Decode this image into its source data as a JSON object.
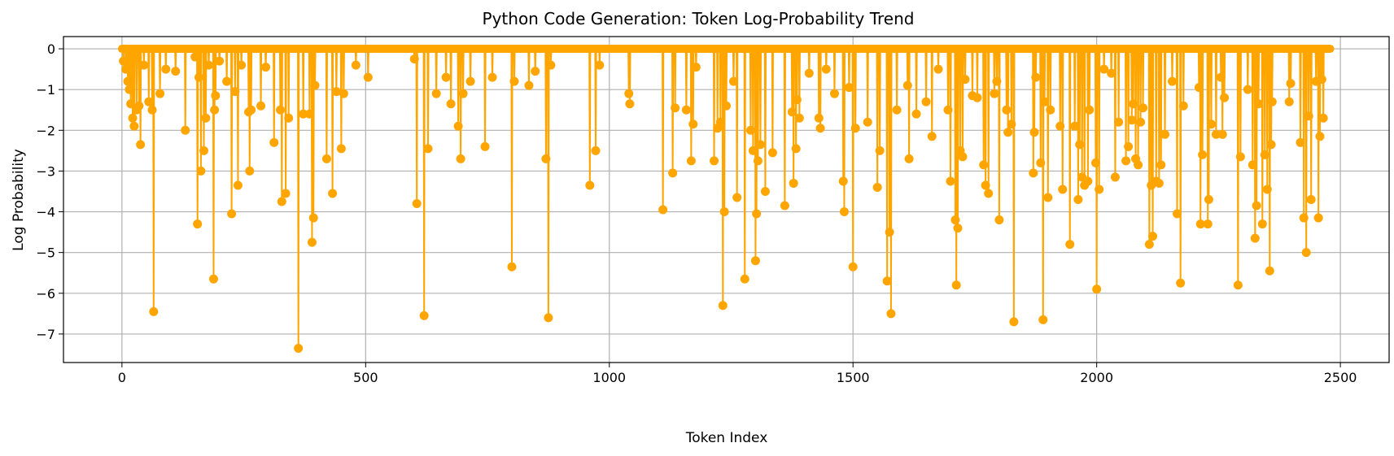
{
  "chart_data": {
    "type": "line",
    "title": "Python Code Generation: Token Log-Probability Trend",
    "xlabel": "Token Index",
    "ylabel": "Log Probability",
    "xlim": [
      -120,
      2600
    ],
    "ylim": [
      -7.7,
      0.3
    ],
    "xticks": [
      0,
      500,
      1000,
      1500,
      2000,
      2500
    ],
    "yticks": [
      0,
      -1,
      -2,
      -3,
      -4,
      -5,
      -6,
      -7
    ],
    "xtick_labels": [
      "0",
      "500",
      "1000",
      "1500",
      "2000",
      "2500"
    ],
    "ytick_labels": [
      "0",
      "−1",
      "−2",
      "−3",
      "−4",
      "−5",
      "−6",
      "−7"
    ],
    "grid": true,
    "series": [
      {
        "color": "#FFA500",
        "marker": "circle",
        "n_points": 2480,
        "baseline": 0,
        "spikes": [
          [
            3,
            -0.3
          ],
          [
            8,
            -0.5
          ],
          [
            12,
            -0.8
          ],
          [
            15,
            -1.0
          ],
          [
            18,
            -1.35
          ],
          [
            22,
            -1.7
          ],
          [
            25,
            -1.9
          ],
          [
            30,
            -1.5
          ],
          [
            35,
            -1.4
          ],
          [
            38,
            -2.35
          ],
          [
            45,
            -0.4
          ],
          [
            55,
            -1.3
          ],
          [
            62,
            -1.5
          ],
          [
            65,
            -6.45
          ],
          [
            78,
            -1.1
          ],
          [
            90,
            -0.5
          ],
          [
            110,
            -0.55
          ],
          [
            130,
            -2.0
          ],
          [
            150,
            -0.2
          ],
          [
            155,
            -4.3
          ],
          [
            158,
            -0.7
          ],
          [
            162,
            -3.0
          ],
          [
            168,
            -2.5
          ],
          [
            172,
            -1.7
          ],
          [
            178,
            -0.4
          ],
          [
            188,
            -5.65
          ],
          [
            190,
            -1.5
          ],
          [
            192,
            -1.15
          ],
          [
            200,
            -0.3
          ],
          [
            215,
            -0.8
          ],
          [
            225,
            -4.05
          ],
          [
            232,
            -1.05
          ],
          [
            238,
            -3.35
          ],
          [
            245,
            -0.4
          ],
          [
            260,
            -1.55
          ],
          [
            262,
            -3.0
          ],
          [
            265,
            -1.5
          ],
          [
            285,
            -1.4
          ],
          [
            295,
            -0.45
          ],
          [
            312,
            -2.3
          ],
          [
            325,
            -1.5
          ],
          [
            328,
            -3.75
          ],
          [
            336,
            -3.55
          ],
          [
            342,
            -1.7
          ],
          [
            362,
            -7.35
          ],
          [
            372,
            -1.6
          ],
          [
            385,
            -1.6
          ],
          [
            390,
            -4.75
          ],
          [
            393,
            -4.15
          ],
          [
            396,
            -0.9
          ],
          [
            420,
            -2.7
          ],
          [
            432,
            -3.55
          ],
          [
            440,
            -1.05
          ],
          [
            450,
            -2.45
          ],
          [
            455,
            -1.1
          ],
          [
            480,
            -0.4
          ],
          [
            505,
            -0.7
          ],
          [
            600,
            -0.25
          ],
          [
            605,
            -3.8
          ],
          [
            620,
            -6.55
          ],
          [
            628,
            -2.45
          ],
          [
            645,
            -1.1
          ],
          [
            665,
            -0.7
          ],
          [
            675,
            -1.35
          ],
          [
            690,
            -1.9
          ],
          [
            695,
            -2.7
          ],
          [
            700,
            -1.1
          ],
          [
            715,
            -0.8
          ],
          [
            745,
            -2.4
          ],
          [
            760,
            -0.7
          ],
          [
            800,
            -5.35
          ],
          [
            805,
            -0.8
          ],
          [
            835,
            -0.9
          ],
          [
            848,
            -0.55
          ],
          [
            870,
            -2.7
          ],
          [
            875,
            -6.6
          ],
          [
            880,
            -0.4
          ],
          [
            960,
            -3.35
          ],
          [
            972,
            -2.5
          ],
          [
            980,
            -0.4
          ],
          [
            1040,
            -1.1
          ],
          [
            1042,
            -1.35
          ],
          [
            1110,
            -3.95
          ],
          [
            1130,
            -3.05
          ],
          [
            1135,
            -1.45
          ],
          [
            1158,
            -1.5
          ],
          [
            1168,
            -2.75
          ],
          [
            1172,
            -1.85
          ],
          [
            1178,
            -0.45
          ],
          [
            1215,
            -2.75
          ],
          [
            1222,
            -1.95
          ],
          [
            1228,
            -1.8
          ],
          [
            1233,
            -6.3
          ],
          [
            1236,
            -4.0
          ],
          [
            1240,
            -1.4
          ],
          [
            1255,
            -0.8
          ],
          [
            1262,
            -3.65
          ],
          [
            1278,
            -5.65
          ],
          [
            1290,
            -2.0
          ],
          [
            1295,
            -2.5
          ],
          [
            1300,
            -5.2
          ],
          [
            1302,
            -4.05
          ],
          [
            1305,
            -2.75
          ],
          [
            1310,
            -2.35
          ],
          [
            1320,
            -3.5
          ],
          [
            1335,
            -2.55
          ],
          [
            1360,
            -3.85
          ],
          [
            1375,
            -1.55
          ],
          [
            1378,
            -3.3
          ],
          [
            1383,
            -2.45
          ],
          [
            1385,
            -1.25
          ],
          [
            1390,
            -1.7
          ],
          [
            1410,
            -0.6
          ],
          [
            1430,
            -1.7
          ],
          [
            1433,
            -1.95
          ],
          [
            1445,
            -0.5
          ],
          [
            1462,
            -1.1
          ],
          [
            1480,
            -3.25
          ],
          [
            1482,
            -4.0
          ],
          [
            1492,
            -0.95
          ],
          [
            1500,
            -5.35
          ],
          [
            1505,
            -1.95
          ],
          [
            1530,
            -1.8
          ],
          [
            1550,
            -3.4
          ],
          [
            1555,
            -2.5
          ],
          [
            1570,
            -5.7
          ],
          [
            1575,
            -4.5
          ],
          [
            1578,
            -6.5
          ],
          [
            1590,
            -1.5
          ],
          [
            1612,
            -0.9
          ],
          [
            1615,
            -2.7
          ],
          [
            1630,
            -1.6
          ],
          [
            1650,
            -1.3
          ],
          [
            1662,
            -2.15
          ],
          [
            1675,
            -0.5
          ],
          [
            1695,
            -1.5
          ],
          [
            1700,
            -3.25
          ],
          [
            1710,
            -4.2
          ],
          [
            1712,
            -5.8
          ],
          [
            1715,
            -4.4
          ],
          [
            1720,
            -2.5
          ],
          [
            1725,
            -2.65
          ],
          [
            1730,
            -0.75
          ],
          [
            1745,
            -1.15
          ],
          [
            1755,
            -1.2
          ],
          [
            1768,
            -2.85
          ],
          [
            1772,
            -3.35
          ],
          [
            1778,
            -3.55
          ],
          [
            1790,
            -1.1
          ],
          [
            1795,
            -0.8
          ],
          [
            1800,
            -4.2
          ],
          [
            1815,
            -1.5
          ],
          [
            1818,
            -2.05
          ],
          [
            1825,
            -1.85
          ],
          [
            1830,
            -6.7
          ],
          [
            1870,
            -3.05
          ],
          [
            1872,
            -2.05
          ],
          [
            1875,
            -0.7
          ],
          [
            1885,
            -2.8
          ],
          [
            1890,
            -6.65
          ],
          [
            1893,
            -1.3
          ],
          [
            1900,
            -3.65
          ],
          [
            1905,
            -1.5
          ],
          [
            1925,
            -1.9
          ],
          [
            1930,
            -3.45
          ],
          [
            1945,
            -4.8
          ],
          [
            1955,
            -1.9
          ],
          [
            1962,
            -3.7
          ],
          [
            1965,
            -2.35
          ],
          [
            1970,
            -3.15
          ],
          [
            1975,
            -3.35
          ],
          [
            1982,
            -3.25
          ],
          [
            1985,
            -1.5
          ],
          [
            1998,
            -2.8
          ],
          [
            2000,
            -5.9
          ],
          [
            2005,
            -3.45
          ],
          [
            2015,
            -0.5
          ],
          [
            2030,
            -0.6
          ],
          [
            2038,
            -3.15
          ],
          [
            2045,
            -1.8
          ],
          [
            2060,
            -2.75
          ],
          [
            2065,
            -2.4
          ],
          [
            2072,
            -1.75
          ],
          [
            2075,
            -1.35
          ],
          [
            2080,
            -2.7
          ],
          [
            2085,
            -2.85
          ],
          [
            2090,
            -1.8
          ],
          [
            2095,
            -1.45
          ],
          [
            2108,
            -4.8
          ],
          [
            2112,
            -3.35
          ],
          [
            2115,
            -4.6
          ],
          [
            2122,
            -3.25
          ],
          [
            2128,
            -3.3
          ],
          [
            2132,
            -2.85
          ],
          [
            2140,
            -2.1
          ],
          [
            2155,
            -0.8
          ],
          [
            2165,
            -4.05
          ],
          [
            2172,
            -5.75
          ],
          [
            2178,
            -1.4
          ],
          [
            2210,
            -0.95
          ],
          [
            2213,
            -4.3
          ],
          [
            2217,
            -2.6
          ],
          [
            2228,
            -4.3
          ],
          [
            2230,
            -3.7
          ],
          [
            2235,
            -1.85
          ],
          [
            2245,
            -2.1
          ],
          [
            2255,
            -0.7
          ],
          [
            2258,
            -2.1
          ],
          [
            2262,
            -1.2
          ],
          [
            2290,
            -5.8
          ],
          [
            2295,
            -2.65
          ],
          [
            2310,
            -1.0
          ],
          [
            2320,
            -2.85
          ],
          [
            2325,
            -4.65
          ],
          [
            2328,
            -3.85
          ],
          [
            2332,
            -1.35
          ],
          [
            2340,
            -4.3
          ],
          [
            2345,
            -2.6
          ],
          [
            2350,
            -3.45
          ],
          [
            2355,
            -5.45
          ],
          [
            2358,
            -2.35
          ],
          [
            2360,
            -1.3
          ],
          [
            2395,
            -1.3
          ],
          [
            2398,
            -0.85
          ],
          [
            2418,
            -2.3
          ],
          [
            2425,
            -4.15
          ],
          [
            2430,
            -5.0
          ],
          [
            2435,
            -1.65
          ],
          [
            2440,
            -3.7
          ],
          [
            2450,
            -0.8
          ],
          [
            2455,
            -4.15
          ],
          [
            2458,
            -2.15
          ],
          [
            2462,
            -0.75
          ],
          [
            2465,
            -1.7
          ]
        ]
      }
    ]
  }
}
